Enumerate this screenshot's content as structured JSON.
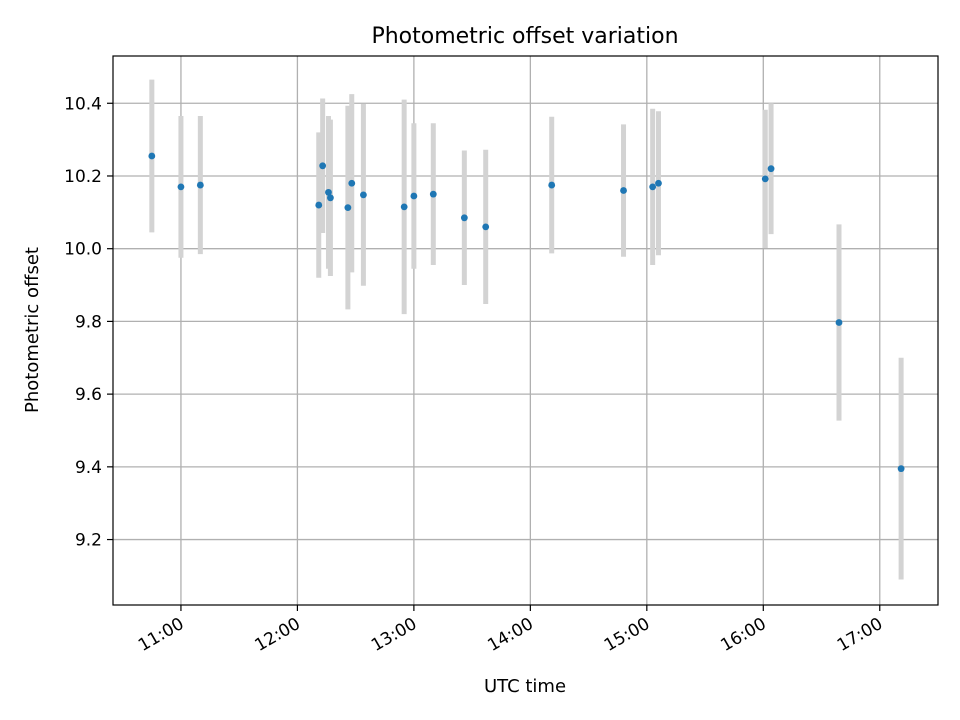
{
  "chart_data": {
    "type": "scatter",
    "title": "Photometric offset variation",
    "xlabel": "UTC time",
    "ylabel": "Photometric offset",
    "x_tick_labels": [
      "11:00",
      "12:00",
      "13:00",
      "14:00",
      "15:00",
      "16:00",
      "17:00"
    ],
    "x_ticks": [
      "11:00",
      "12:00",
      "13:00",
      "14:00",
      "15:00",
      "16:00",
      "17:00"
    ],
    "xlim": [
      "10:25",
      "17:30"
    ],
    "y_ticks": [
      9.2,
      9.4,
      9.6,
      9.8,
      10.0,
      10.2,
      10.4
    ],
    "y_tick_labels": [
      "9.2",
      "9.4",
      "9.6",
      "9.8",
      "10.0",
      "10.2",
      "10.4"
    ],
    "ylim": [
      9.02,
      10.53
    ],
    "grid": true,
    "point_color": "#1f77b4",
    "errorbar_color": "#d3d3d3",
    "points": [
      {
        "x": "10:45",
        "y": 10.255,
        "err": 0.21
      },
      {
        "x": "11:00",
        "y": 10.17,
        "err": 0.195
      },
      {
        "x": "11:10",
        "y": 10.175,
        "err": 0.19
      },
      {
        "x": "12:11",
        "y": 10.12,
        "err": 0.2
      },
      {
        "x": "12:13",
        "y": 10.228,
        "err": 0.185
      },
      {
        "x": "12:16",
        "y": 10.155,
        "err": 0.21
      },
      {
        "x": "12:17",
        "y": 10.14,
        "err": 0.215
      },
      {
        "x": "12:26",
        "y": 10.113,
        "err": 0.28
      },
      {
        "x": "12:28",
        "y": 10.18,
        "err": 0.245
      },
      {
        "x": "12:34",
        "y": 10.148,
        "err": 0.25
      },
      {
        "x": "12:55",
        "y": 10.115,
        "err": 0.295
      },
      {
        "x": "13:00",
        "y": 10.145,
        "err": 0.2
      },
      {
        "x": "13:10",
        "y": 10.15,
        "err": 0.195
      },
      {
        "x": "13:26",
        "y": 10.085,
        "err": 0.185
      },
      {
        "x": "13:37",
        "y": 10.06,
        "err": 0.212
      },
      {
        "x": "14:11",
        "y": 10.175,
        "err": 0.188
      },
      {
        "x": "14:48",
        "y": 10.16,
        "err": 0.182
      },
      {
        "x": "15:03",
        "y": 10.17,
        "err": 0.215
      },
      {
        "x": "15:06",
        "y": 10.18,
        "err": 0.198
      },
      {
        "x": "16:01",
        "y": 10.192,
        "err": 0.19
      },
      {
        "x": "16:04",
        "y": 10.22,
        "err": 0.18
      },
      {
        "x": "16:39",
        "y": 9.797,
        "err": 0.27
      },
      {
        "x": "17:11",
        "y": 9.395,
        "err": 0.305
      }
    ]
  }
}
